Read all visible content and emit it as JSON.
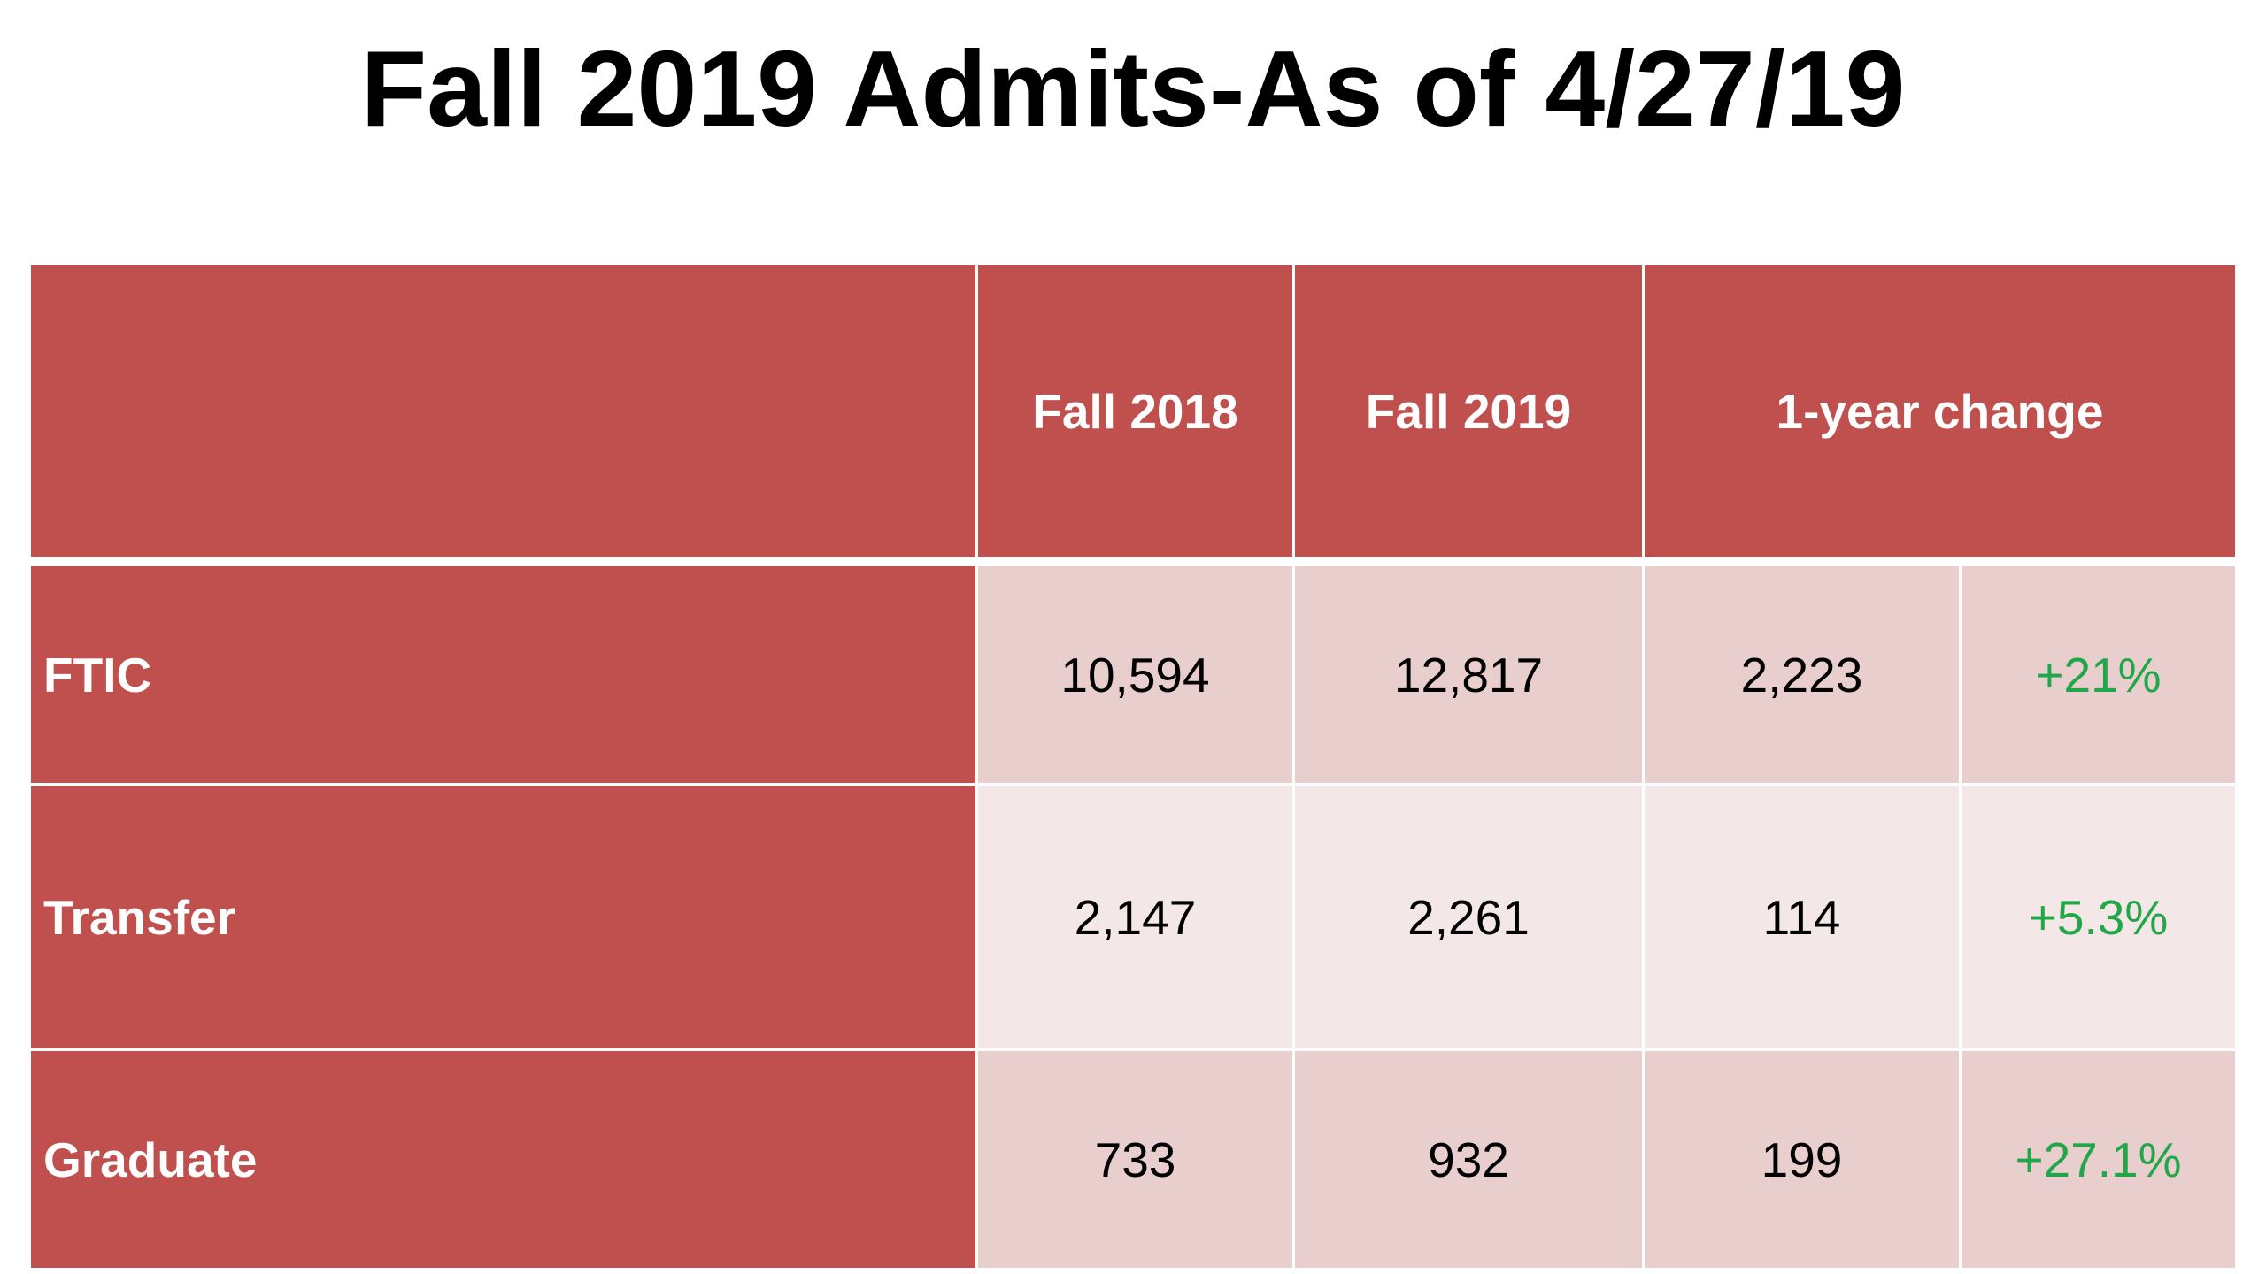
{
  "title": "Fall 2019 Admits-As of 4/27/19",
  "table": {
    "headers": {
      "corner": "",
      "fall_2018": "Fall 2018",
      "fall_2019": "Fall 2019",
      "change": "1-year change"
    },
    "rows": [
      {
        "label": "FTIC",
        "fall_2018": "10,594",
        "fall_2019": "12,817",
        "change": "2,223",
        "pct": "+21%"
      },
      {
        "label": "Transfer",
        "fall_2018": "2,147",
        "fall_2019": "2,261",
        "change": "114",
        "pct": "+5.3%"
      },
      {
        "label": "Graduate",
        "fall_2018": "733",
        "fall_2019": "932",
        "change": "199",
        "pct": "+27.1%"
      }
    ]
  },
  "colors": {
    "header_bg": "#c0504d",
    "row_dark": "#e9cece",
    "row_light": "#f4e7e7",
    "positive_text": "#22a64a"
  }
}
